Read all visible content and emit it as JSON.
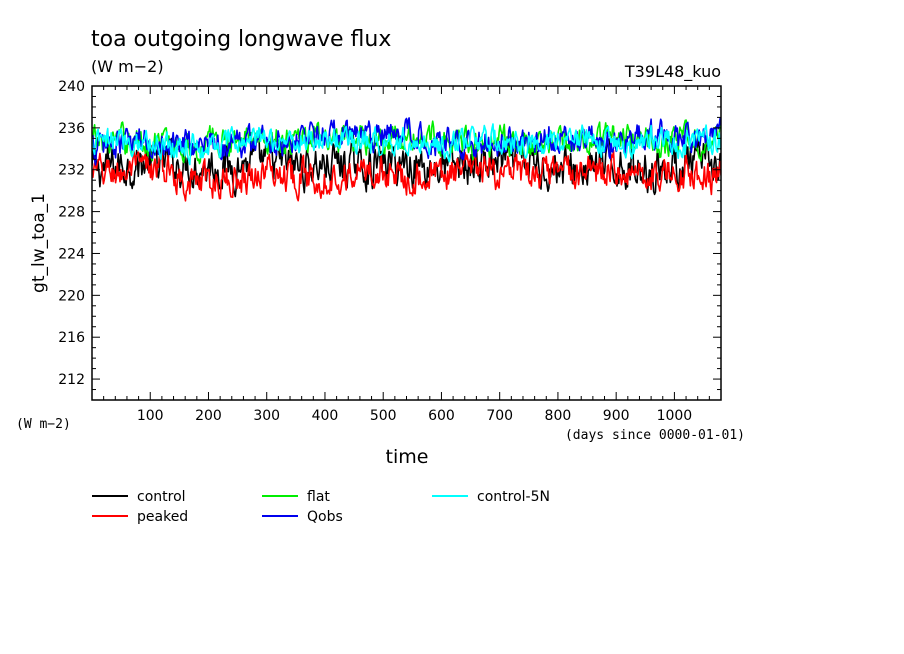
{
  "chart_data": {
    "type": "line",
    "title": "toa outgoing longwave flux",
    "units": "(W m−2)",
    "run_label": "T39L48_kuo",
    "ylabel": "gt_lw_toa_1",
    "ylabel_units": "(W m−2)",
    "xlabel": "time",
    "xlabel_units": "(days since 0000-01-01)",
    "xlim": [
      0,
      1080
    ],
    "ylim": [
      210,
      240
    ],
    "xticks": [
      100,
      200,
      300,
      400,
      500,
      600,
      700,
      800,
      900,
      1000
    ],
    "yticks": [
      212,
      216,
      220,
      224,
      228,
      232,
      236,
      240
    ],
    "grid": false,
    "legend_position": "bottom",
    "series": [
      {
        "name": "control",
        "color": "#000000",
        "x": [
          0,
          60,
          120,
          180,
          240,
          300,
          360,
          420,
          480,
          540,
          600,
          660,
          720,
          780,
          840,
          900,
          960,
          1020,
          1080
        ],
        "values": [
          232.0,
          232.5,
          232.8,
          232.4,
          232.3,
          232.9,
          232.3,
          232.6,
          232.4,
          232.7,
          232.2,
          232.5,
          232.8,
          232.3,
          232.0,
          232.4,
          232.1,
          232.6,
          232.2
        ]
      },
      {
        "name": "peaked",
        "color": "#ff0000",
        "x": [
          0,
          60,
          120,
          180,
          240,
          300,
          360,
          420,
          480,
          540,
          600,
          660,
          720,
          780,
          840,
          900,
          960,
          1020,
          1080
        ],
        "values": [
          231.6,
          231.8,
          232.1,
          230.8,
          231.0,
          232.0,
          231.4,
          231.3,
          231.9,
          231.4,
          231.6,
          231.9,
          231.5,
          231.4,
          231.8,
          232.0,
          231.6,
          231.8,
          231.3
        ]
      },
      {
        "name": "flat",
        "color": "#00ee00",
        "x": [
          0,
          60,
          120,
          180,
          240,
          300,
          360,
          420,
          480,
          540,
          600,
          660,
          720,
          780,
          840,
          900,
          960,
          1020,
          1080
        ],
        "values": [
          234.6,
          234.8,
          234.6,
          234.2,
          235.0,
          234.9,
          235.1,
          234.7,
          234.9,
          235.0,
          235.2,
          234.5,
          234.8,
          234.4,
          234.9,
          235.0,
          234.6,
          234.7,
          234.9
        ]
      },
      {
        "name": "Qobs",
        "color": "#0000ee",
        "x": [
          0,
          60,
          120,
          180,
          240,
          300,
          360,
          420,
          480,
          540,
          600,
          660,
          720,
          780,
          840,
          900,
          960,
          1020,
          1080
        ],
        "values": [
          234.0,
          234.5,
          234.8,
          234.3,
          234.6,
          234.9,
          235.2,
          235.4,
          234.8,
          235.5,
          235.0,
          234.4,
          234.9,
          235.3,
          235.0,
          234.6,
          235.1,
          234.8,
          235.0
        ]
      },
      {
        "name": "control-5N",
        "color": "#00ffff",
        "x": [
          0,
          60,
          120,
          180,
          240,
          300,
          360,
          420,
          480,
          540,
          600,
          660,
          720,
          780,
          840,
          900,
          960,
          1020,
          1080
        ],
        "values": [
          234.3,
          234.9,
          234.6,
          234.1,
          234.5,
          235.0,
          234.8,
          235.1,
          234.6,
          234.9,
          234.3,
          234.7,
          234.6,
          234.5,
          234.8,
          234.4,
          235.0,
          234.6,
          234.8
        ]
      }
    ]
  }
}
